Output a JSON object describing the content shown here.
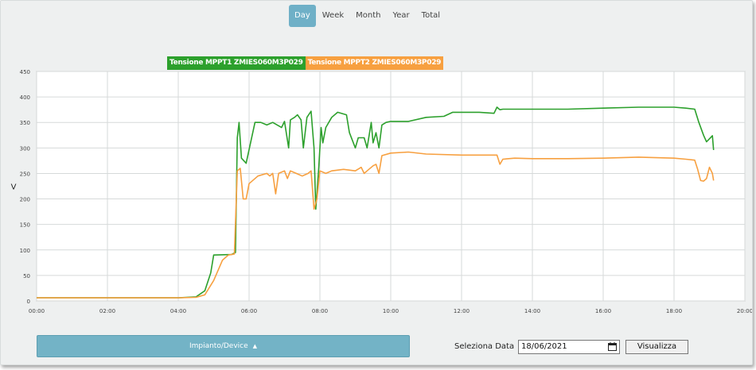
{
  "tabs": [
    {
      "label": "Day",
      "active": true
    },
    {
      "label": "Week",
      "active": false
    },
    {
      "label": "Month",
      "active": false
    },
    {
      "label": "Year",
      "active": false
    },
    {
      "label": "Total",
      "active": false
    }
  ],
  "legend": [
    {
      "label": "Tensione MPPT1 ZMIES060M3P029",
      "color": "#2ca02c"
    },
    {
      "label": "Tensione MPPT2 ZMIES060M3P029",
      "color": "#f7a040"
    }
  ],
  "chart_data": {
    "type": "line",
    "ylabel": "V",
    "ylim": [
      0,
      450
    ],
    "yticks": [
      "0",
      "50",
      "100",
      "150",
      "200",
      "250",
      "300",
      "350",
      "400",
      "450"
    ],
    "xlim": [
      "00:00",
      "20:00"
    ],
    "xticks": [
      "00:00",
      "02:00",
      "04:00",
      "06:00",
      "08:00",
      "10:00",
      "12:00",
      "14:00",
      "16:00",
      "18:00",
      "20:00"
    ],
    "grid": true,
    "series": [
      {
        "name": "Tensione MPPT1 ZMIES060M3P029",
        "color": "#2ca02c",
        "points": [
          [
            "00:00",
            6
          ],
          [
            "02:00",
            6
          ],
          [
            "04:00",
            6
          ],
          [
            "04:30",
            8
          ],
          [
            "04:45",
            20
          ],
          [
            "04:55",
            55
          ],
          [
            "05:00",
            90
          ],
          [
            "05:30",
            91
          ],
          [
            "05:37",
            95
          ],
          [
            "05:40",
            320
          ],
          [
            "05:43",
            350
          ],
          [
            "05:47",
            280
          ],
          [
            "05:55",
            270
          ],
          [
            "06:10",
            350
          ],
          [
            "06:20",
            350
          ],
          [
            "06:30",
            345
          ],
          [
            "06:40",
            350
          ],
          [
            "06:55",
            340
          ],
          [
            "07:00",
            352
          ],
          [
            "07:07",
            300
          ],
          [
            "07:10",
            355
          ],
          [
            "07:17",
            360
          ],
          [
            "07:22",
            365
          ],
          [
            "07:28",
            355
          ],
          [
            "07:32",
            300
          ],
          [
            "07:38",
            360
          ],
          [
            "07:45",
            372
          ],
          [
            "07:50",
            300
          ],
          [
            "07:53",
            180
          ],
          [
            "07:58",
            260
          ],
          [
            "08:02",
            340
          ],
          [
            "08:05",
            310
          ],
          [
            "08:10",
            340
          ],
          [
            "08:20",
            360
          ],
          [
            "08:30",
            370
          ],
          [
            "08:45",
            365
          ],
          [
            "08:50",
            330
          ],
          [
            "09:00",
            300
          ],
          [
            "09:05",
            320
          ],
          [
            "09:15",
            320
          ],
          [
            "09:20",
            300
          ],
          [
            "09:27",
            350
          ],
          [
            "09:30",
            310
          ],
          [
            "09:35",
            330
          ],
          [
            "09:40",
            300
          ],
          [
            "09:45",
            345
          ],
          [
            "09:52",
            350
          ],
          [
            "10:00",
            352
          ],
          [
            "10:30",
            352
          ],
          [
            "11:00",
            360
          ],
          [
            "11:30",
            362
          ],
          [
            "11:45",
            370
          ],
          [
            "12:30",
            370
          ],
          [
            "12:55",
            368
          ],
          [
            "13:00",
            380
          ],
          [
            "13:05",
            375
          ],
          [
            "13:10",
            376
          ],
          [
            "14:00",
            376
          ],
          [
            "15:00",
            376
          ],
          [
            "16:00",
            378
          ],
          [
            "17:00",
            380
          ],
          [
            "18:00",
            380
          ],
          [
            "18:20",
            378
          ],
          [
            "18:35",
            376
          ],
          [
            "18:42",
            350
          ],
          [
            "18:50",
            325
          ],
          [
            "18:55",
            312
          ],
          [
            "19:00",
            318
          ],
          [
            "19:05",
            324
          ],
          [
            "19:07",
            296
          ]
        ]
      },
      {
        "name": "Tensione MPPT2 ZMIES060M3P029",
        "color": "#f7a040",
        "points": [
          [
            "00:00",
            6
          ],
          [
            "02:00",
            6
          ],
          [
            "04:00",
            6
          ],
          [
            "04:30",
            7
          ],
          [
            "04:45",
            12
          ],
          [
            "05:00",
            40
          ],
          [
            "05:15",
            80
          ],
          [
            "05:25",
            90
          ],
          [
            "05:35",
            92
          ],
          [
            "05:40",
            255
          ],
          [
            "05:45",
            260
          ],
          [
            "05:50",
            200
          ],
          [
            "05:55",
            200
          ],
          [
            "06:00",
            230
          ],
          [
            "06:15",
            245
          ],
          [
            "06:30",
            250
          ],
          [
            "06:35",
            245
          ],
          [
            "06:40",
            250
          ],
          [
            "06:45",
            210
          ],
          [
            "06:50",
            250
          ],
          [
            "07:00",
            255
          ],
          [
            "07:05",
            240
          ],
          [
            "07:10",
            255
          ],
          [
            "07:20",
            250
          ],
          [
            "07:30",
            245
          ],
          [
            "07:40",
            250
          ],
          [
            "07:45",
            255
          ],
          [
            "07:50",
            180
          ],
          [
            "07:55",
            200
          ],
          [
            "08:00",
            255
          ],
          [
            "08:10",
            250
          ],
          [
            "08:20",
            255
          ],
          [
            "08:40",
            258
          ],
          [
            "09:00",
            255
          ],
          [
            "09:10",
            262
          ],
          [
            "09:15",
            250
          ],
          [
            "09:20",
            255
          ],
          [
            "09:30",
            265
          ],
          [
            "09:35",
            268
          ],
          [
            "09:40",
            250
          ],
          [
            "09:45",
            285
          ],
          [
            "10:00",
            290
          ],
          [
            "10:30",
            292
          ],
          [
            "11:00",
            288
          ],
          [
            "12:00",
            286
          ],
          [
            "13:00",
            286
          ],
          [
            "13:05",
            268
          ],
          [
            "13:10",
            278
          ],
          [
            "13:30",
            280
          ],
          [
            "14:00",
            279
          ],
          [
            "15:00",
            279
          ],
          [
            "16:00",
            280
          ],
          [
            "17:00",
            282
          ],
          [
            "18:00",
            280
          ],
          [
            "18:20",
            278
          ],
          [
            "18:35",
            276
          ],
          [
            "18:40",
            258
          ],
          [
            "18:45",
            236
          ],
          [
            "18:50",
            235
          ],
          [
            "18:55",
            240
          ],
          [
            "19:00",
            262
          ],
          [
            "19:05",
            250
          ],
          [
            "19:07",
            236
          ]
        ]
      }
    ]
  },
  "controls": {
    "device_button": "Impianto/Device",
    "date_label": "Seleziona Data",
    "date_value": "18/06/2021",
    "view_button": "Visualizza"
  }
}
